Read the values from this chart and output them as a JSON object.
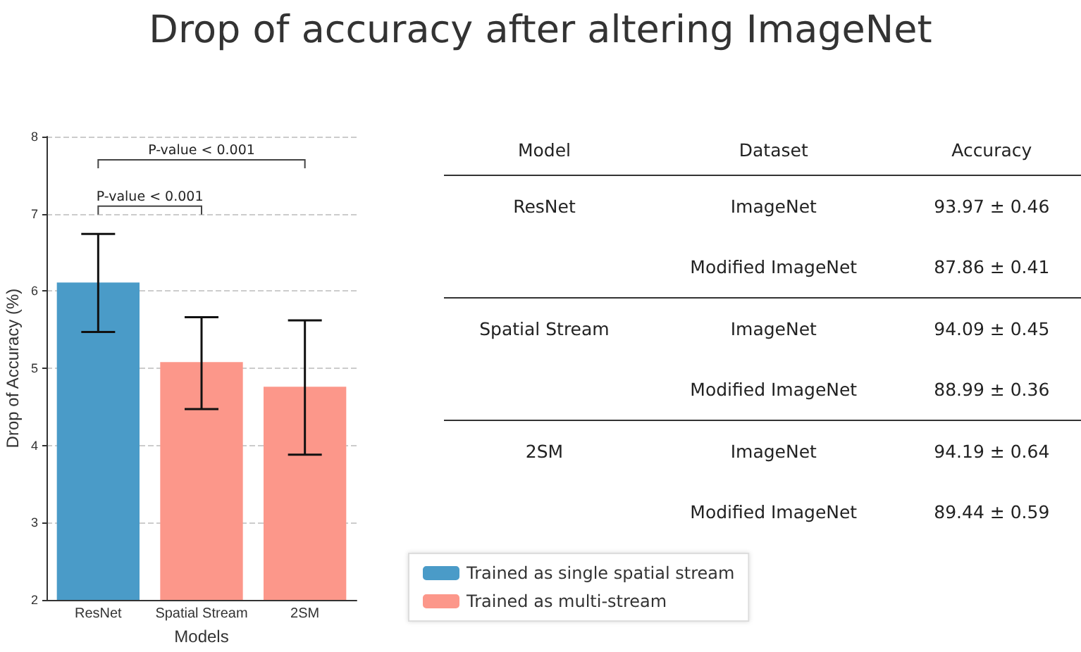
{
  "chart_data": [
    {
      "type": "bar",
      "title": "Drop of accuracy after altering ImageNet",
      "xlabel": "Models",
      "ylabel": "Drop of Accuracy (%)",
      "categories": [
        "ResNet",
        "Spatial Stream",
        "2SM"
      ],
      "series": [
        {
          "name": "Trained as single spatial stream",
          "color": "#4a9bc8",
          "values": [
            6.11,
            null,
            null
          ],
          "errors": [
            [
              5.47,
              6.74
            ],
            null,
            null
          ]
        },
        {
          "name": "Trained as multi-stream",
          "color": "#fc978a",
          "values": [
            null,
            5.08,
            4.76
          ],
          "errors": [
            null,
            [
              4.47,
              5.66
            ],
            [
              3.88,
              5.62
            ]
          ]
        }
      ],
      "ylim": [
        2,
        8
      ],
      "yticks": [
        2,
        3,
        4,
        5,
        6,
        7,
        8
      ],
      "grid": "y",
      "legend": "bottom right",
      "annotations": [
        "P-value < 0.001",
        "P-value < 0.001"
      ]
    },
    {
      "type": "other",
      "categories": [
        "Model",
        "Dataset",
        "Accuracy"
      ],
      "cell_labels": [
        [
          "ResNet",
          "ImageNet",
          "93.97 ± 0.46"
        ],
        [
          null,
          "Modified ImageNet",
          "87.86 ± 0.41"
        ],
        [
          "Spatial Stream",
          "ImageNet",
          "94.09 ± 0.45"
        ],
        [
          null,
          "Modified ImageNet",
          "88.99 ± 0.36"
        ],
        [
          "2SM",
          "ImageNet",
          "94.19 ± 0.64"
        ],
        [
          null,
          "Modified ImageNet",
          "89.44 ± 0.59"
        ]
      ]
    }
  ]
}
